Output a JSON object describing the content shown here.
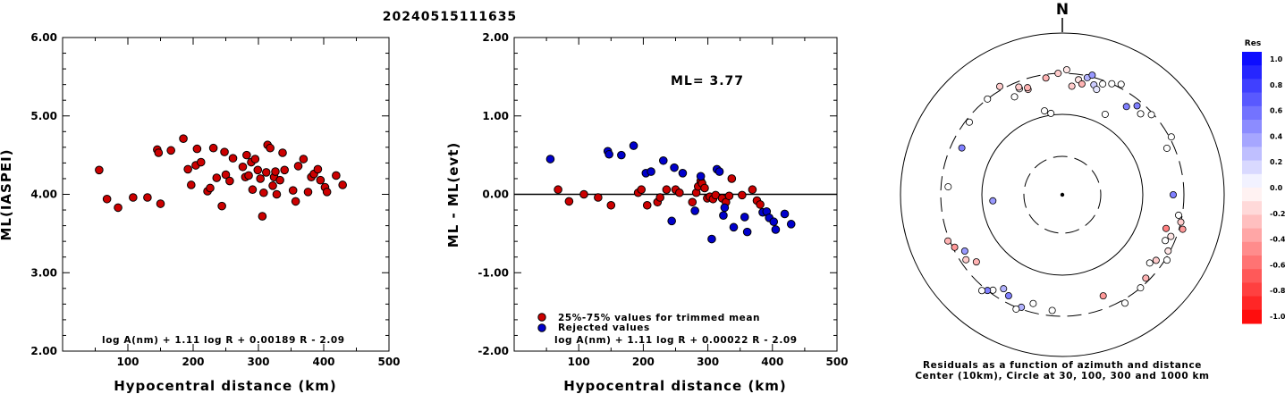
{
  "title": "20240515111635",
  "chart_data": [
    {
      "type": "scatter",
      "xlabel": "Hypocentral distance (km)",
      "ylabel": "ML(IASPEI)",
      "xlim": [
        0,
        500
      ],
      "ylim": [
        2.0,
        6.0
      ],
      "xticks": [
        "100",
        "200",
        "300",
        "400",
        "500"
      ],
      "yticks": [
        "2.00",
        "3.00",
        "4.00",
        "5.00",
        "6.00"
      ],
      "formula": "log A(nm) + 1.11 log R + 0.00189 R - 2.09",
      "series": [
        {
          "color": "#cc0000",
          "points": [
            [
              56,
              4.31
            ],
            [
              68,
              3.94
            ],
            [
              85,
              3.83
            ],
            [
              108,
              3.96
            ],
            [
              130,
              3.96
            ],
            [
              145,
              4.57
            ],
            [
              147,
              4.53
            ],
            [
              150,
              3.88
            ],
            [
              166,
              4.56
            ],
            [
              185,
              4.71
            ],
            [
              192,
              4.32
            ],
            [
              197,
              4.12
            ],
            [
              204,
              4.37
            ],
            [
              206,
              4.58
            ],
            [
              212,
              4.41
            ],
            [
              222,
              4.04
            ],
            [
              226,
              4.08
            ],
            [
              231,
              4.59
            ],
            [
              236,
              4.21
            ],
            [
              244,
              3.85
            ],
            [
              248,
              4.54
            ],
            [
              250,
              4.25
            ],
            [
              256,
              4.17
            ],
            [
              261,
              4.46
            ],
            [
              276,
              4.35
            ],
            [
              280,
              4.22
            ],
            [
              282,
              4.5
            ],
            [
              285,
              4.24
            ],
            [
              289,
              4.41
            ],
            [
              291,
              4.06
            ],
            [
              295,
              4.45
            ],
            [
              299,
              4.31
            ],
            [
              303,
              4.2
            ],
            [
              306,
              3.72
            ],
            [
              308,
              4.02
            ],
            [
              312,
              4.28
            ],
            [
              314,
              4.63
            ],
            [
              318,
              4.59
            ],
            [
              322,
              4.11
            ],
            [
              324,
              4.22
            ],
            [
              326,
              4.29
            ],
            [
              328,
              4.0
            ],
            [
              333,
              4.18
            ],
            [
              337,
              4.53
            ],
            [
              340,
              4.31
            ],
            [
              353,
              4.05
            ],
            [
              357,
              3.91
            ],
            [
              361,
              4.36
            ],
            [
              369,
              4.45
            ],
            [
              376,
              4.03
            ],
            [
              381,
              4.22
            ],
            [
              385,
              4.26
            ],
            [
              391,
              4.32
            ],
            [
              395,
              4.18
            ],
            [
              402,
              4.09
            ],
            [
              405,
              4.03
            ],
            [
              419,
              4.24
            ],
            [
              429,
              4.12
            ]
          ]
        }
      ]
    },
    {
      "type": "scatter",
      "xlabel": "Hypocentral distance (km)",
      "ylabel": "ML - ML(evt)",
      "xlim": [
        0,
        500
      ],
      "ylim": [
        -2.0,
        2.0
      ],
      "xticks": [
        "100",
        "200",
        "300",
        "400",
        "500"
      ],
      "yticks": [
        "-2.00",
        "-1.00",
        "0.00",
        "1.00",
        "2.00"
      ],
      "annotation": "ML= 3.77",
      "formula": "log A(nm) + 1.11 log R + 0.00022 R - 2.09",
      "legend": [
        "25%-75% values for trimmed mean",
        "Rejected values"
      ],
      "series": [
        {
          "name": "25%-75% values for trimmed mean",
          "color": "#cc0000",
          "points": [
            [
              68,
              0.06
            ],
            [
              85,
              -0.09
            ],
            [
              108,
              0.0
            ],
            [
              130,
              -0.04
            ],
            [
              150,
              -0.14
            ],
            [
              192,
              0.02
            ],
            [
              197,
              0.06
            ],
            [
              206,
              -0.14
            ],
            [
              222,
              -0.1
            ],
            [
              226,
              -0.04
            ],
            [
              236,
              0.06
            ],
            [
              250,
              0.06
            ],
            [
              256,
              0.02
            ],
            [
              276,
              -0.1
            ],
            [
              282,
              0.02
            ],
            [
              285,
              0.1
            ],
            [
              289,
              0.17
            ],
            [
              291,
              0.14
            ],
            [
              295,
              0.08
            ],
            [
              299,
              -0.05
            ],
            [
              303,
              -0.03
            ],
            [
              308,
              -0.06
            ],
            [
              312,
              -0.01
            ],
            [
              322,
              -0.05
            ],
            [
              328,
              -0.1
            ],
            [
              333,
              -0.02
            ],
            [
              337,
              0.2
            ],
            [
              353,
              -0.01
            ],
            [
              369,
              0.06
            ],
            [
              376,
              -0.08
            ],
            [
              381,
              -0.13
            ]
          ]
        },
        {
          "name": "Rejected values",
          "color": "#0000cc",
          "points": [
            [
              56,
              0.45
            ],
            [
              145,
              0.55
            ],
            [
              147,
              0.51
            ],
            [
              166,
              0.5
            ],
            [
              185,
              0.62
            ],
            [
              204,
              0.27
            ],
            [
              212,
              0.29
            ],
            [
              231,
              0.43
            ],
            [
              244,
              -0.34
            ],
            [
              248,
              0.34
            ],
            [
              261,
              0.27
            ],
            [
              280,
              -0.21
            ],
            [
              289,
              0.23
            ],
            [
              306,
              -0.57
            ],
            [
              314,
              0.32
            ],
            [
              318,
              0.29
            ],
            [
              324,
              -0.27
            ],
            [
              326,
              -0.17
            ],
            [
              340,
              -0.42
            ],
            [
              357,
              -0.29
            ],
            [
              361,
              -0.48
            ],
            [
              385,
              -0.23
            ],
            [
              391,
              -0.22
            ],
            [
              395,
              -0.3
            ],
            [
              402,
              -0.35
            ],
            [
              405,
              -0.45
            ],
            [
              419,
              -0.25
            ],
            [
              429,
              -0.38
            ]
          ]
        }
      ]
    },
    {
      "type": "scatter",
      "subtype": "polar",
      "north_label": "N",
      "caption": [
        "Residuals as a function of azimuth and distance",
        "Center (10km), Circle at 30, 100, 300 and 1000 km"
      ],
      "colorbar_title": "Res",
      "colorbar_ticks": [
        "1.0",
        "0.8",
        "0.6",
        "0.4",
        "0.2",
        "0.0",
        "-0.2",
        "-0.4",
        "-0.6",
        "-0.8",
        "-1.0"
      ],
      "points": [
        [
          -22,
          0.0
        ],
        [
          -18,
          -0.2
        ],
        [
          -8,
          -0.3
        ],
        [
          -2,
          -0.2
        ],
        [
          2,
          -0.1
        ],
        [
          5,
          -0.2
        ],
        [
          8,
          -0.1
        ],
        [
          10,
          -0.3
        ],
        [
          12,
          0.3
        ],
        [
          14,
          0.4
        ],
        [
          16,
          0.2
        ],
        [
          18,
          0.1
        ],
        [
          20,
          0.0
        ],
        [
          24,
          0.0
        ],
        [
          28,
          0.0
        ],
        [
          36,
          0.5
        ],
        [
          40,
          0.5
        ],
        [
          44,
          0.0
        ],
        [
          48,
          0.0
        ],
        [
          62,
          0.0
        ],
        [
          66,
          0.0
        ],
        [
          90,
          0.5
        ],
        [
          100,
          0.0
        ],
        [
          103,
          -0.2
        ],
        [
          106,
          -0.4
        ],
        [
          108,
          -0.5
        ],
        [
          111,
          -0.1
        ],
        [
          114,
          0.0
        ],
        [
          118,
          -0.1
        ],
        [
          122,
          0.0
        ],
        [
          125,
          -0.2
        ],
        [
          128,
          0.0
        ],
        [
          135,
          -0.3
        ],
        [
          140,
          0.0
        ],
        [
          150,
          0.0
        ],
        [
          158,
          -0.4
        ],
        [
          185,
          0.0
        ],
        [
          195,
          0.0
        ],
        [
          200,
          0.3
        ],
        [
          202,
          0.0
        ],
        [
          208,
          0.5
        ],
        [
          212,
          0.3
        ],
        [
          216,
          0.0
        ],
        [
          218,
          0.5
        ],
        [
          220,
          0.0
        ],
        [
          232,
          -0.3
        ],
        [
          236,
          -0.2
        ],
        [
          240,
          0.4
        ],
        [
          244,
          -0.4
        ],
        [
          248,
          -0.3
        ],
        [
          274,
          0.0
        ],
        [
          295,
          0.5
        ],
        [
          308,
          0.0
        ],
        [
          322,
          0.0
        ],
        [
          330,
          -0.2
        ],
        [
          334,
          0.0
        ],
        [
          338,
          -0.2
        ],
        [
          342,
          -0.3
        ]
      ],
      "inner_points": [
        [
          -95,
          0.4
        ],
        [
          -8,
          0.0
        ],
        [
          -12,
          0.0
        ],
        [
          28,
          0.0
        ]
      ]
    }
  ]
}
